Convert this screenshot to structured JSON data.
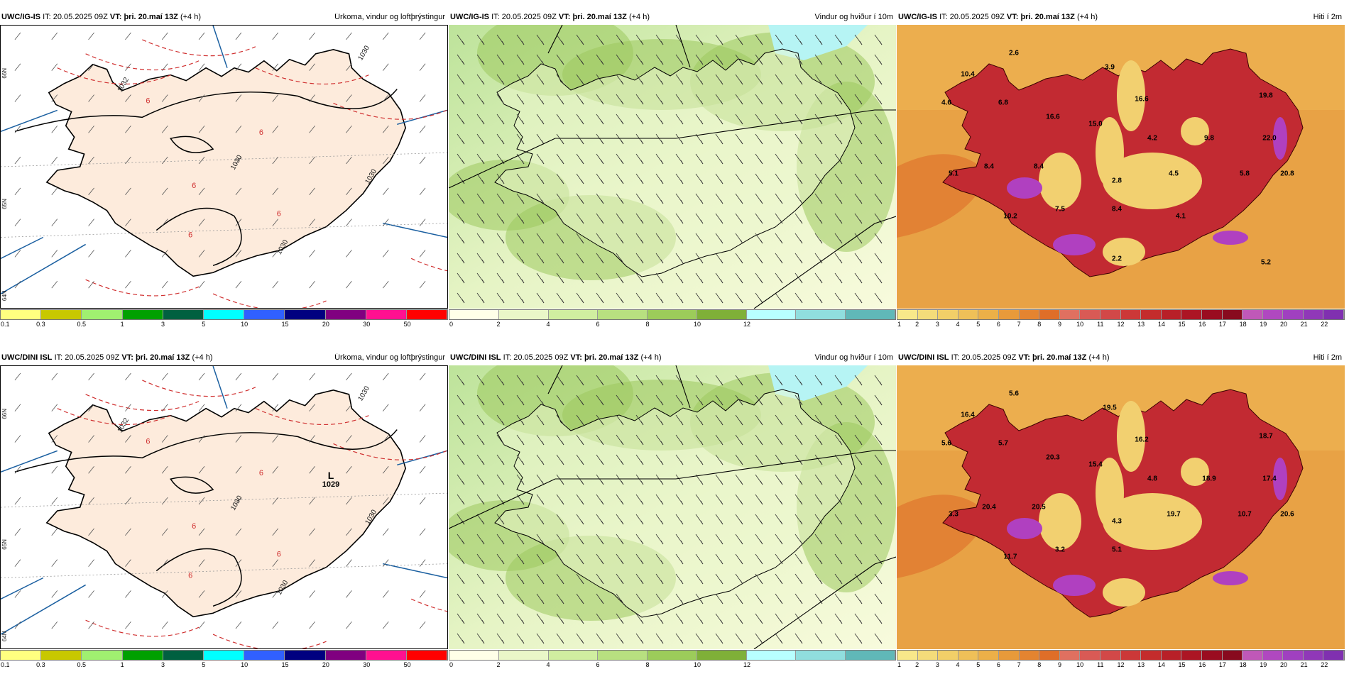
{
  "rows": [
    {
      "model": "UWC/IG-IS",
      "it_label": "IT:",
      "it": "20.05.2025 09Z",
      "vt_label": "VT:",
      "vt": "þri. 20.maí 13Z",
      "lead": "(+4 h)",
      "low_center": null,
      "temps": [
        {
          "v": "2.6"
        },
        {
          "v": "10.4"
        },
        {
          "v": "3.9"
        },
        {
          "v": "4.6"
        },
        {
          "v": "6.8"
        },
        {
          "v": "16.6"
        },
        {
          "v": "15.0"
        },
        {
          "v": "16.6"
        },
        {
          "v": "19.8"
        },
        {
          "v": "4.2"
        },
        {
          "v": "9.8"
        },
        {
          "v": "22.0"
        },
        {
          "v": "8.4"
        },
        {
          "v": "8.4"
        },
        {
          "v": "5.1"
        },
        {
          "v": "2.8"
        },
        {
          "v": "4.5"
        },
        {
          "v": "5.8"
        },
        {
          "v": "20.8"
        },
        {
          "v": "10.2"
        },
        {
          "v": "7.5"
        },
        {
          "v": "8.4"
        },
        {
          "v": "4.1"
        },
        {
          "v": "2.2"
        },
        {
          "v": "5.2"
        }
      ]
    },
    {
      "model": "UWC/DINI ISL",
      "it_label": "IT:",
      "it": "20.05.2025 09Z",
      "vt_label": "VT:",
      "vt": "þri. 20.maí 13Z",
      "lead": "(+4 h)",
      "low_center": {
        "letter": "L",
        "value": "1029"
      },
      "temps": [
        {
          "v": "5.6"
        },
        {
          "v": "16.4"
        },
        {
          "v": "19.5"
        },
        {
          "v": "5.6"
        },
        {
          "v": "5.7"
        },
        {
          "v": "20.3"
        },
        {
          "v": "15.4"
        },
        {
          "v": "16.2"
        },
        {
          "v": "18.7"
        },
        {
          "v": "4.8"
        },
        {
          "v": "18.9"
        },
        {
          "v": "17.4"
        },
        {
          "v": "20.4"
        },
        {
          "v": "20.5"
        },
        {
          "v": "3.3"
        },
        {
          "v": "4.3"
        },
        {
          "v": "19.7"
        },
        {
          "v": "10.7"
        },
        {
          "v": "20.6"
        },
        {
          "v": "11.7"
        },
        {
          "v": "3.2"
        },
        {
          "v": "5.1"
        }
      ]
    }
  ],
  "panel_titles": {
    "precip": "Úrkoma, vindur og loftþrýstingur",
    "wind": "Vindur og hviður í 10m",
    "temp": "Hiti í 2m"
  },
  "isobar_labels": [
    "1030",
    "1030",
    "1032",
    "1030",
    "1030"
  ],
  "contour_6": "6",
  "lat_labels": [
    "66N",
    "65N",
    "64N"
  ],
  "colorbars": {
    "precip": {
      "colors": [
        "#ffff80",
        "#c8c800",
        "#a0f070",
        "#00a000",
        "#006040",
        "#00ffff",
        "#3060ff",
        "#000080",
        "#800080",
        "#ff1090",
        "#ff0000"
      ],
      "ticks": [
        "0.1",
        "0.3",
        "0.5",
        "1",
        "3",
        "5",
        "10",
        "15",
        "20",
        "30",
        "50"
      ]
    },
    "wind": {
      "colors": [
        "#ffffe8",
        "#eaf7c8",
        "#d0eea0",
        "#b8e080",
        "#9ccc5a",
        "#7fb038",
        "#b8ffff",
        "#90dede",
        "#60b8b8"
      ],
      "ticks": [
        "0",
        "2",
        "4",
        "6",
        "8",
        "10",
        "12"
      ]
    },
    "temp": {
      "colors": [
        "#f8e88a",
        "#f4dc7a",
        "#f2cf68",
        "#efc058",
        "#ecb048",
        "#e89a3a",
        "#e48430",
        "#df6e28",
        "#e07060",
        "#d95a55",
        "#d24848",
        "#cc3838",
        "#c42c2c",
        "#b82028",
        "#ac1524",
        "#9a0c20",
        "#880a1e",
        "#c058b8",
        "#b048c0",
        "#a040c0",
        "#9038b8",
        "#8030b0"
      ],
      "ticks": [
        "1",
        "2",
        "3",
        "4",
        "5",
        "6",
        "7",
        "8",
        "9",
        "10",
        "11",
        "12",
        "13",
        "14",
        "15",
        "16",
        "17",
        "18",
        "19",
        "20",
        "21",
        "22"
      ]
    }
  },
  "colors": {
    "land_precip": "#fdebdc",
    "sea_precip": "#ffffff",
    "isobar": "#000000",
    "contour_dashed": "#d03030",
    "coast_lines": "#1a5fa0"
  }
}
